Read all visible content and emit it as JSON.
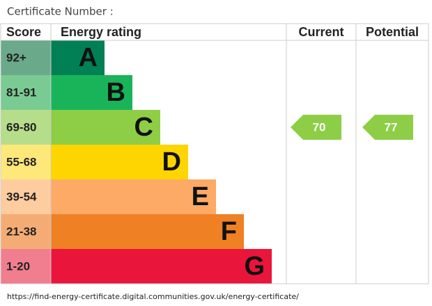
{
  "chart_data": {
    "type": "epc",
    "title": "Certificate Number :",
    "columns": [
      "Score",
      "Energy rating",
      "Current",
      "Potential"
    ],
    "bands": [
      {
        "range": "92+",
        "letter": "A",
        "color": "#008054",
        "tint": "#6aa98a"
      },
      {
        "range": "81-91",
        "letter": "B",
        "color": "#19b459",
        "tint": "#7acb93"
      },
      {
        "range": "69-80",
        "letter": "C",
        "color": "#8dce46",
        "tint": "#b6dd8a"
      },
      {
        "range": "55-68",
        "letter": "D",
        "color": "#ffd500",
        "tint": "#ffe87a"
      },
      {
        "range": "39-54",
        "letter": "E",
        "color": "#fcaa65",
        "tint": "#fdcc9f"
      },
      {
        "range": "21-38",
        "letter": "F",
        "color": "#ef8023",
        "tint": "#f5ac74"
      },
      {
        "range": "1-20",
        "letter": "G",
        "color": "#e9153b",
        "tint": "#f07e8f"
      }
    ],
    "current": 70,
    "potential": 77,
    "footer": "https://find-energy-certificate.digital.communities.gov.uk/energy-certificate/"
  }
}
